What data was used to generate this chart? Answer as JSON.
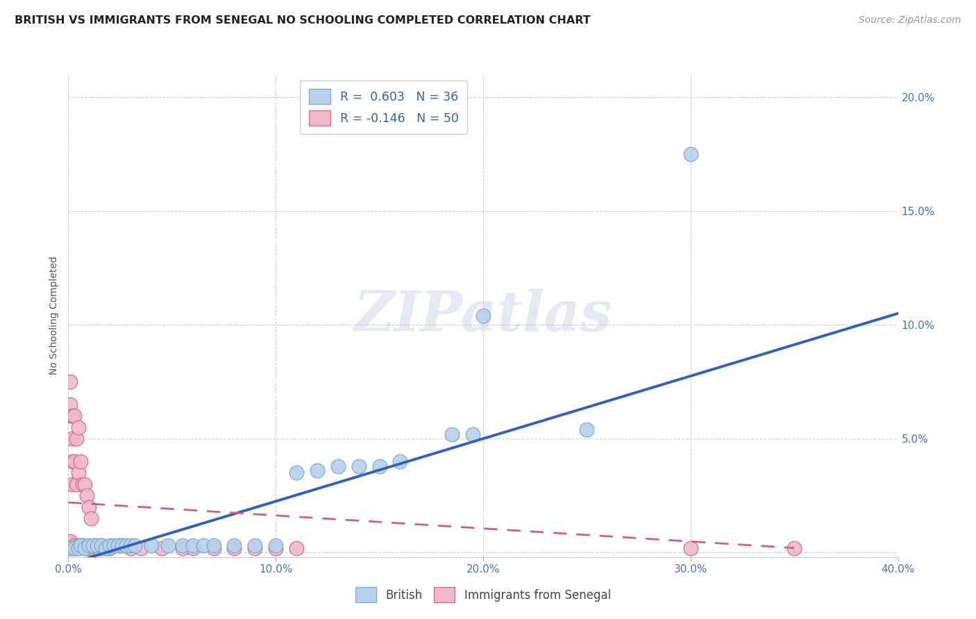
{
  "title": "BRITISH VS IMMIGRANTS FROM SENEGAL NO SCHOOLING COMPLETED CORRELATION CHART",
  "source": "Source: ZipAtlas.com",
  "ylabel": "No Schooling Completed",
  "xlim": [
    0.0,
    0.4
  ],
  "ylim": [
    -0.002,
    0.21
  ],
  "xticks": [
    0.0,
    0.1,
    0.2,
    0.3,
    0.4
  ],
  "yticks": [
    0.0,
    0.05,
    0.1,
    0.15,
    0.2
  ],
  "xtick_labels": [
    "0.0%",
    "10.0%",
    "20.0%",
    "30.0%",
    "40.0%"
  ],
  "ytick_labels_left": [
    "",
    "",
    "",
    "",
    ""
  ],
  "ytick_labels_right": [
    "",
    "5.0%",
    "10.0%",
    "15.0%",
    "20.0%"
  ],
  "watermark": "ZIPatlas",
  "british_color": "#b8d0ec",
  "british_edge": "#7aadd4",
  "senegal_color": "#f0b8c8",
  "senegal_edge": "#d07090",
  "british_line_color": "#3060c0",
  "senegal_line_color": "#d06080",
  "background_color": "#ffffff",
  "grid_color": "#d0d0d0",
  "title_fontsize": 11.5,
  "axis_label_fontsize": 10,
  "tick_fontsize": 11,
  "tick_color": "#4472c4",
  "source_fontsize": 10,
  "british_points": [
    [
      0.001,
      0.002
    ],
    [
      0.003,
      0.002
    ],
    [
      0.005,
      0.002
    ],
    [
      0.006,
      0.003
    ],
    [
      0.008,
      0.002
    ],
    [
      0.01,
      0.003
    ],
    [
      0.012,
      0.003
    ],
    [
      0.014,
      0.003
    ],
    [
      0.016,
      0.003
    ],
    [
      0.018,
      0.002
    ],
    [
      0.02,
      0.003
    ],
    [
      0.022,
      0.003
    ],
    [
      0.024,
      0.003
    ],
    [
      0.026,
      0.003
    ],
    [
      0.028,
      0.003
    ],
    [
      0.03,
      0.003
    ],
    [
      0.032,
      0.003
    ],
    [
      0.04,
      0.003
    ],
    [
      0.048,
      0.003
    ],
    [
      0.055,
      0.003
    ],
    [
      0.06,
      0.003
    ],
    [
      0.065,
      0.003
    ],
    [
      0.07,
      0.003
    ],
    [
      0.08,
      0.003
    ],
    [
      0.09,
      0.003
    ],
    [
      0.1,
      0.003
    ],
    [
      0.11,
      0.035
    ],
    [
      0.12,
      0.036
    ],
    [
      0.13,
      0.038
    ],
    [
      0.14,
      0.038
    ],
    [
      0.15,
      0.038
    ],
    [
      0.16,
      0.04
    ],
    [
      0.185,
      0.052
    ],
    [
      0.195,
      0.052
    ],
    [
      0.2,
      0.104
    ],
    [
      0.25,
      0.054
    ],
    [
      0.3,
      0.175
    ]
  ],
  "senegal_points": [
    [
      0.0,
      0.002
    ],
    [
      0.001,
      0.004
    ],
    [
      0.001,
      0.005
    ],
    [
      0.001,
      0.06
    ],
    [
      0.001,
      0.065
    ],
    [
      0.001,
      0.075
    ],
    [
      0.002,
      0.002
    ],
    [
      0.002,
      0.03
    ],
    [
      0.002,
      0.04
    ],
    [
      0.002,
      0.05
    ],
    [
      0.002,
      0.06
    ],
    [
      0.003,
      0.003
    ],
    [
      0.003,
      0.04
    ],
    [
      0.003,
      0.06
    ],
    [
      0.004,
      0.002
    ],
    [
      0.004,
      0.03
    ],
    [
      0.004,
      0.05
    ],
    [
      0.005,
      0.003
    ],
    [
      0.005,
      0.035
    ],
    [
      0.005,
      0.055
    ],
    [
      0.006,
      0.003
    ],
    [
      0.006,
      0.04
    ],
    [
      0.007,
      0.003
    ],
    [
      0.007,
      0.03
    ],
    [
      0.008,
      0.002
    ],
    [
      0.008,
      0.03
    ],
    [
      0.009,
      0.025
    ],
    [
      0.01,
      0.002
    ],
    [
      0.01,
      0.02
    ],
    [
      0.011,
      0.015
    ],
    [
      0.012,
      0.002
    ],
    [
      0.013,
      0.003
    ],
    [
      0.014,
      0.002
    ],
    [
      0.015,
      0.002
    ],
    [
      0.016,
      0.003
    ],
    [
      0.018,
      0.002
    ],
    [
      0.02,
      0.002
    ],
    [
      0.025,
      0.003
    ],
    [
      0.03,
      0.002
    ],
    [
      0.035,
      0.002
    ],
    [
      0.045,
      0.002
    ],
    [
      0.055,
      0.002
    ],
    [
      0.06,
      0.002
    ],
    [
      0.07,
      0.002
    ],
    [
      0.08,
      0.002
    ],
    [
      0.09,
      0.002
    ],
    [
      0.1,
      0.002
    ],
    [
      0.11,
      0.002
    ],
    [
      0.3,
      0.002
    ],
    [
      0.35,
      0.002
    ]
  ],
  "brit_line_x": [
    0.0,
    0.4
  ],
  "brit_line_y": [
    -0.005,
    0.105
  ],
  "sen_line_x": [
    0.0,
    0.35
  ],
  "sen_line_y": [
    0.022,
    0.002
  ]
}
